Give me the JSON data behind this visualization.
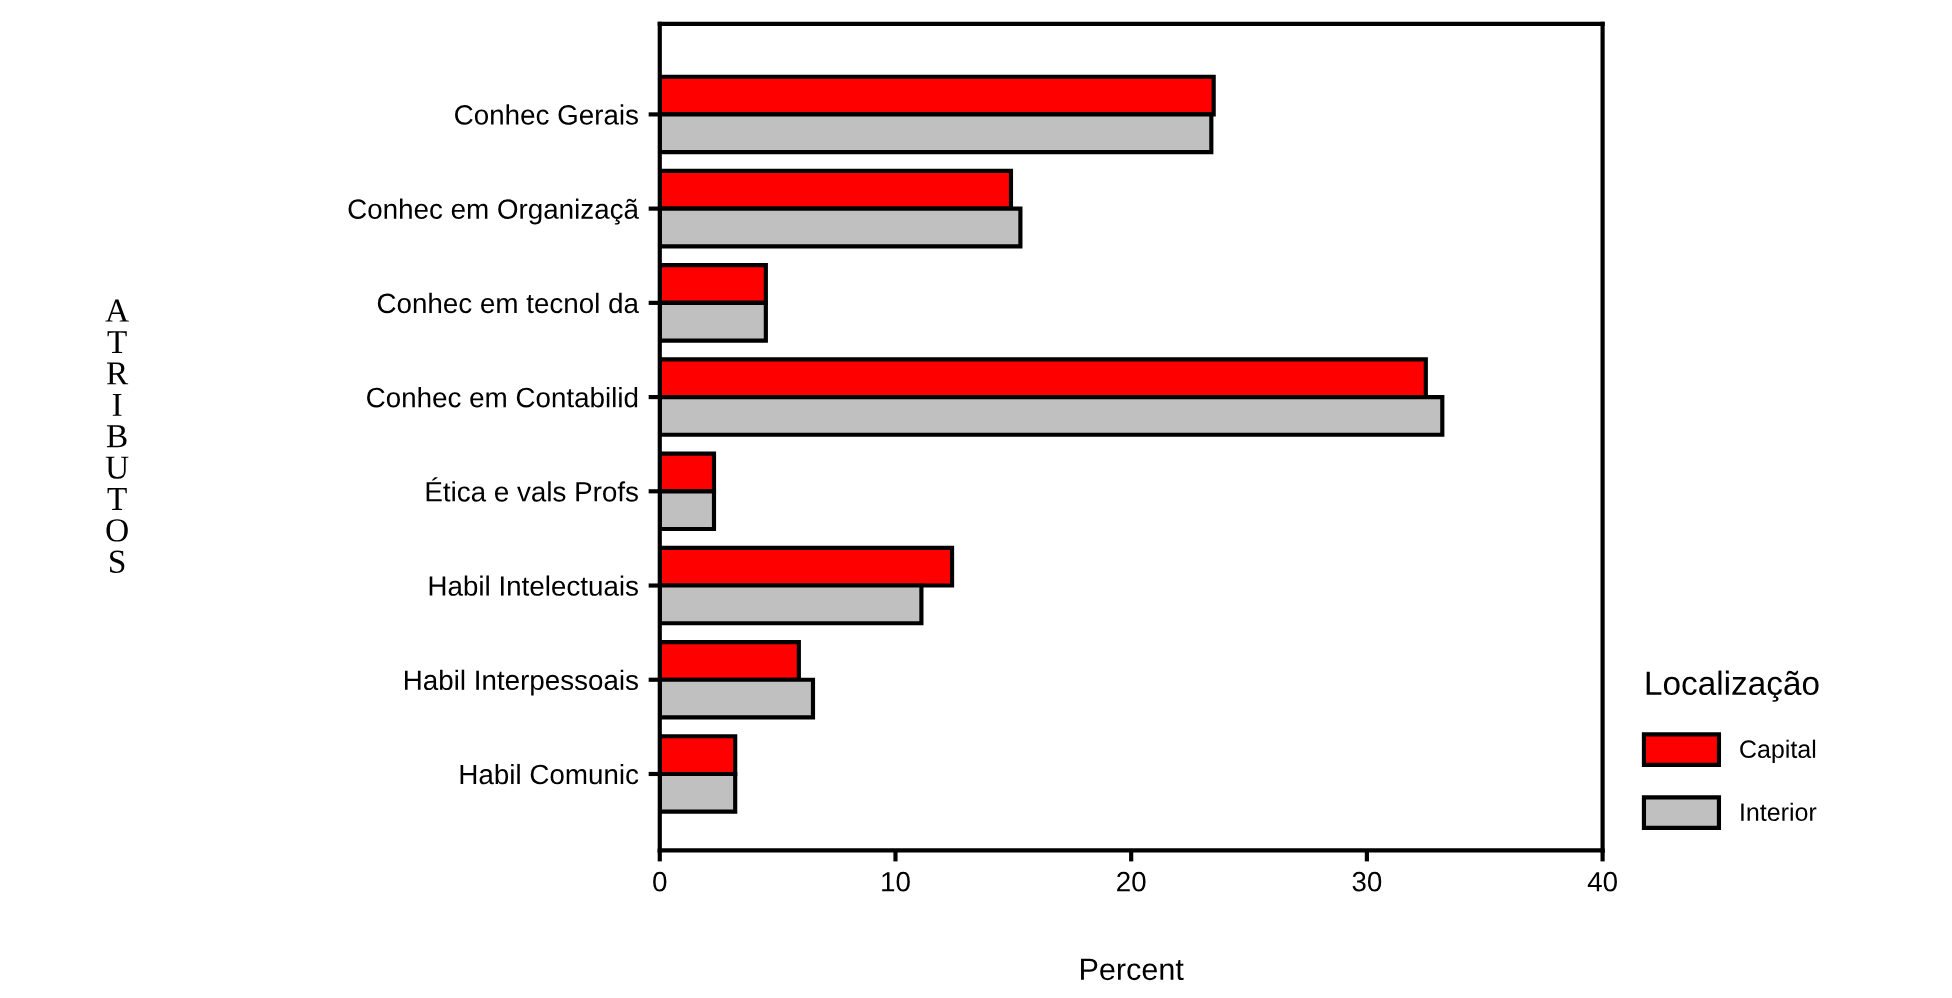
{
  "chart_data": {
    "type": "bar",
    "orientation": "horizontal",
    "xlabel": "Percent",
    "ylabel": "ATRIBUTOS",
    "legend_title": "Localização",
    "legend": "right",
    "categories": [
      "Conhec Gerais",
      "Conhec em Organizaçã",
      "Conhec em tecnol da",
      "Conhec em Contabilid",
      "Ética e vals Profs",
      "Habil Intelectuais",
      "Habil Interpessoais",
      "Habil Comunic"
    ],
    "series": [
      {
        "name": "Capital",
        "color": "#ff0000",
        "values": [
          23.5,
          14.9,
          4.5,
          32.5,
          2.3,
          12.4,
          5.9,
          3.2
        ]
      },
      {
        "name": "Interior",
        "color": "#c0c0c0",
        "values": [
          23.4,
          15.3,
          4.5,
          33.2,
          2.3,
          11.1,
          6.5,
          3.2
        ]
      }
    ],
    "xlim": [
      0,
      40
    ],
    "xticks": [
      0,
      10,
      20,
      30,
      40
    ],
    "grid": false
  }
}
